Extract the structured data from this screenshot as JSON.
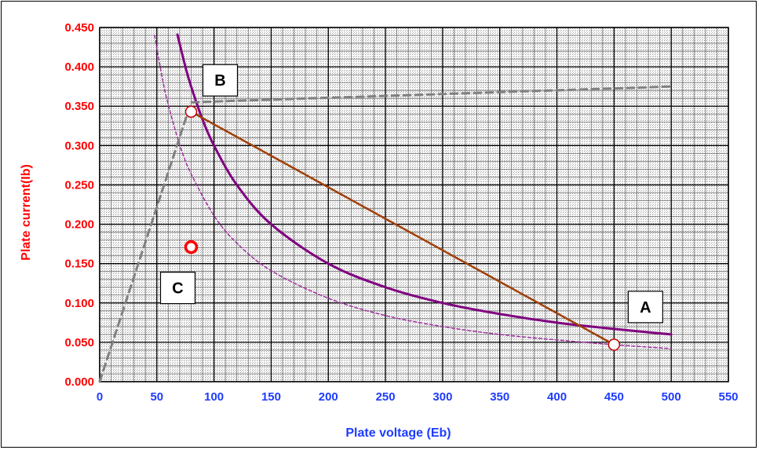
{
  "colors": {
    "y_axis_text": "#ff0000",
    "x_axis_text": "#1e3cff",
    "plot_background": "#c8c8c8",
    "major_grid": "#000000",
    "dissipation_curve": "#800080",
    "dissipation_curve_dashed": "#a030a0",
    "load_line": "#a0400a",
    "clip_line": "#808080",
    "point_marker": "#c00000"
  },
  "chart_data": {
    "type": "line",
    "xlabel": "Plate voltage (Eb)",
    "ylabel": "Plate current(Ib)",
    "xlim": [
      0,
      550
    ],
    "ylim": [
      0,
      0.45
    ],
    "x_ticks": [
      "0",
      "50",
      "100",
      "150",
      "200",
      "250",
      "300",
      "350",
      "400",
      "450",
      "500",
      "550"
    ],
    "y_ticks": [
      "0.000",
      "0.050",
      "0.100",
      "0.150",
      "0.200",
      "0.250",
      "0.300",
      "0.350",
      "0.400",
      "0.450"
    ],
    "grid": true,
    "series": [
      {
        "style": "solid purple curve",
        "x": [
          68,
          75,
          80,
          90,
          100,
          120,
          150,
          200,
          250,
          300,
          350,
          400,
          450,
          500
        ],
        "y": [
          0.441,
          0.4,
          0.375,
          0.333,
          0.3,
          0.25,
          0.2,
          0.15,
          0.12,
          0.1,
          0.086,
          0.075,
          0.067,
          0.06
        ]
      },
      {
        "style": "dashed purple curve",
        "x": [
          48,
          55,
          60,
          70,
          80,
          100,
          120,
          150,
          200,
          250,
          300,
          350,
          400,
          450,
          500
        ],
        "y": [
          0.44,
          0.384,
          0.352,
          0.301,
          0.264,
          0.211,
          0.176,
          0.141,
          0.106,
          0.084,
          0.07,
          0.06,
          0.053,
          0.047,
          0.042
        ]
      },
      {
        "style": "brown load line",
        "x": [
          80,
          450
        ],
        "y": [
          0.343,
          0.047
        ]
      },
      {
        "style": "grey dashed line",
        "x": [
          0,
          80,
          500
        ],
        "y": [
          0,
          0.355,
          0.375
        ]
      }
    ],
    "points": [
      {
        "label": "B",
        "x": 80,
        "y": 0.343,
        "marker": "open",
        "label_dx": 37,
        "label_dy": -40
      },
      {
        "label": "A",
        "x": 450,
        "y": 0.047,
        "marker": "open",
        "label_dx": 40,
        "label_dy": -48
      },
      {
        "label": "C",
        "x": 80,
        "y": 0.171,
        "marker": "ring",
        "label_dx": -17,
        "label_dy": 52
      }
    ]
  }
}
